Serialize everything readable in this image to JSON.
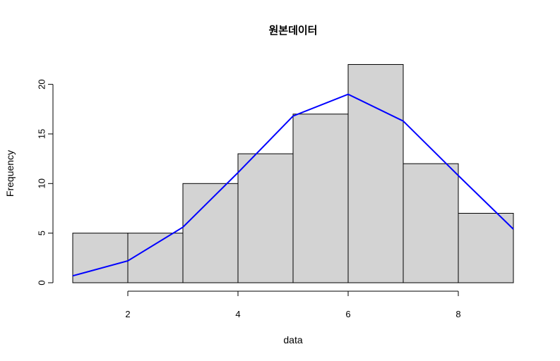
{
  "chart_data": {
    "type": "bar",
    "title": "원본데이터",
    "xlabel": "data",
    "ylabel": "Frequency",
    "bins": [
      {
        "from": 1,
        "to": 2,
        "count": 5
      },
      {
        "from": 2,
        "to": 3,
        "count": 5
      },
      {
        "from": 3,
        "to": 4,
        "count": 10
      },
      {
        "from": 4,
        "to": 5,
        "count": 13
      },
      {
        "from": 5,
        "to": 6,
        "count": 17
      },
      {
        "from": 6,
        "to": 7,
        "count": 22
      },
      {
        "from": 7,
        "to": 8,
        "count": 12
      },
      {
        "from": 8,
        "to": 9,
        "count": 7
      }
    ],
    "curve": {
      "color": "#0000ff",
      "x": [
        1,
        2,
        3,
        4,
        5,
        6,
        7,
        8,
        9
      ],
      "y": [
        0.7,
        2.2,
        5.6,
        11.1,
        16.8,
        19.0,
        16.3,
        10.8,
        5.4
      ]
    },
    "xlim": [
      1,
      9
    ],
    "ylim": [
      0,
      22
    ],
    "xticks": [
      "2",
      "4",
      "6",
      "8"
    ],
    "yticks": [
      "0",
      "5",
      "10",
      "15",
      "20"
    ],
    "bar_fill": "#d3d3d3",
    "grid": false
  }
}
